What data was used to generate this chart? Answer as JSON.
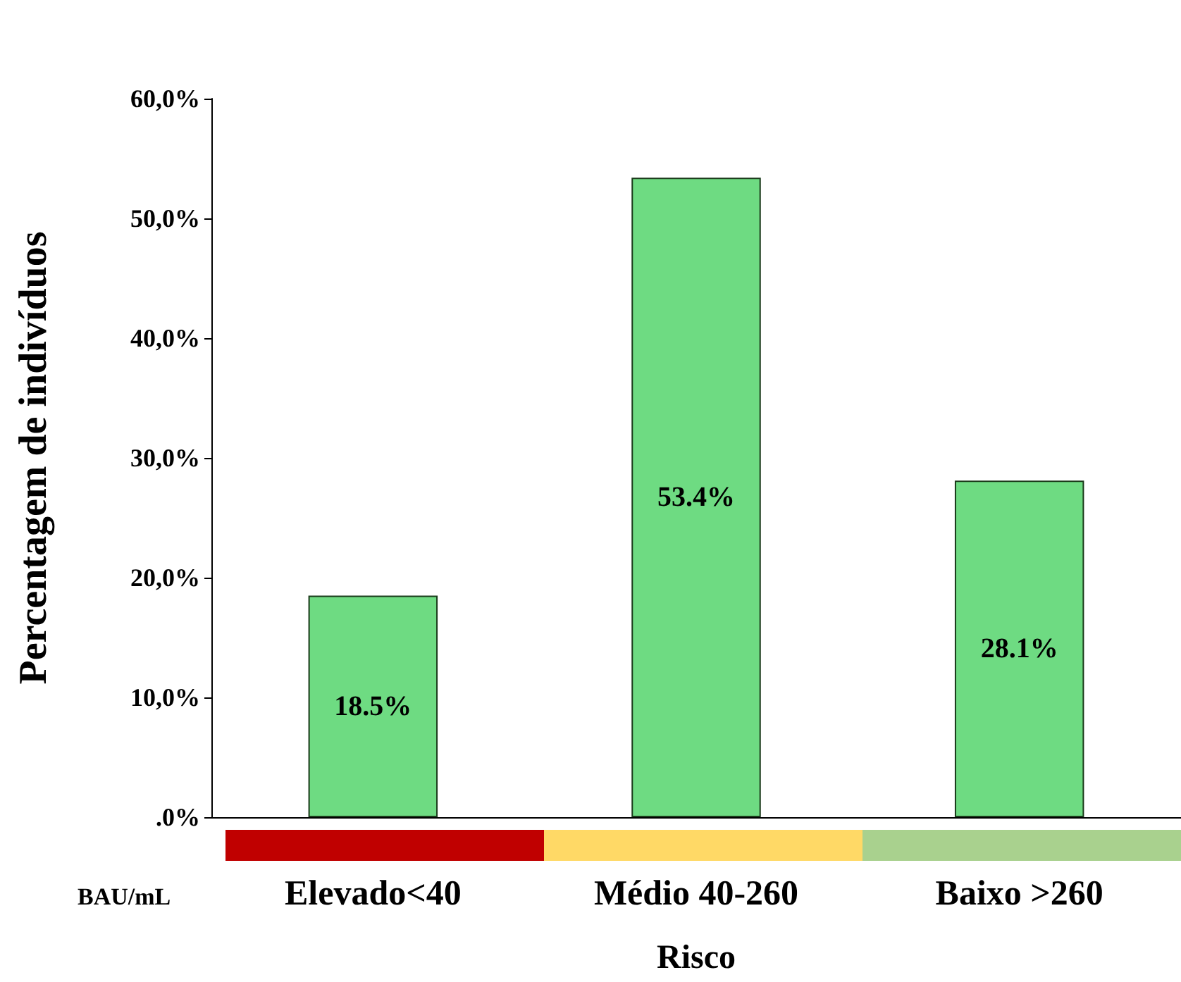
{
  "chart_data": {
    "type": "bar",
    "ylabel": "Percentagem de indivíduos",
    "xlabel": "Risco",
    "categories": [
      "Elevado<40",
      "Médio 40-260",
      "Baixo >260"
    ],
    "values": [
      18.5,
      53.4,
      28.1
    ],
    "color": "#6edb82",
    "value_labels": [
      "18.5%",
      "53.4%",
      "28.1%"
    ],
    "ylim": [
      0,
      60
    ],
    "yticks": [
      {
        "value": 0,
        "label": ".0%"
      },
      {
        "value": 10,
        "label": "10,0%"
      },
      {
        "value": 20,
        "label": "20,0%"
      },
      {
        "value": 30,
        "label": "30,0%"
      },
      {
        "value": 40,
        "label": "40,0%"
      },
      {
        "value": 50,
        "label": "50,0%"
      },
      {
        "value": 60,
        "label": "60,0%"
      }
    ],
    "annotations": [
      "BAU/mL"
    ]
  }
}
